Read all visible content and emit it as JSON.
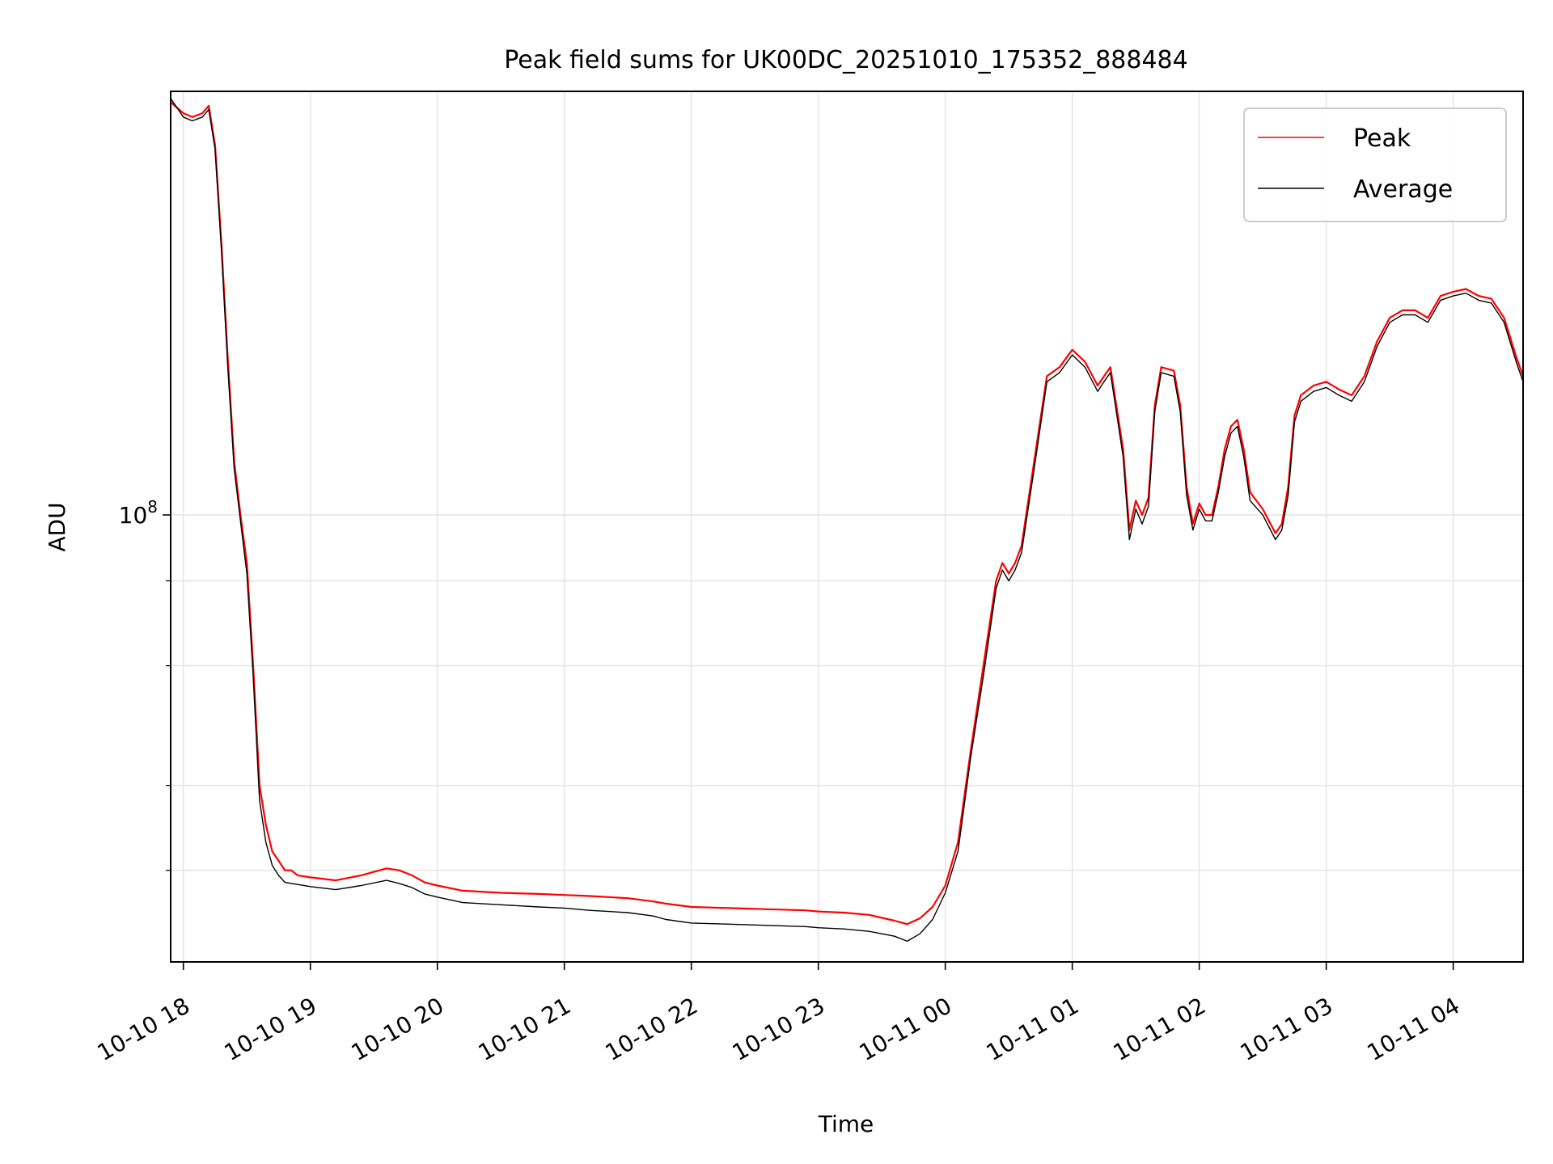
{
  "chart_data": {
    "type": "line",
    "title": "Peak field sums for UK00DC_20251010_175352_888484",
    "xlabel": "Time",
    "ylabel": "ADU",
    "yscale": "log",
    "ylim": [
      22000000,
      420000000
    ],
    "xlim_hours": [
      -0.1,
      10.55
    ],
    "x_ticks": [
      {
        "label": "10-10 18",
        "hour": 0
      },
      {
        "label": "10-10 19",
        "hour": 1
      },
      {
        "label": "10-10 20",
        "hour": 2
      },
      {
        "label": "10-10 21",
        "hour": 3
      },
      {
        "label": "10-10 22",
        "hour": 4
      },
      {
        "label": "10-10 23",
        "hour": 5
      },
      {
        "label": "10-11 00",
        "hour": 6
      },
      {
        "label": "10-11 01",
        "hour": 7
      },
      {
        "label": "10-11 02",
        "hour": 8
      },
      {
        "label": "10-11 03",
        "hour": 9
      },
      {
        "label": "10-11 04",
        "hour": 10
      }
    ],
    "y_major_tick": {
      "base": "10",
      "exp": "8",
      "value": 100000000
    },
    "y_minor_ticks": [
      30000000,
      40000000,
      60000000,
      80000000
    ],
    "grid": true,
    "legend_position": "upper-right",
    "series": [
      {
        "name": "Peak",
        "color": "#ff0000",
        "x_hours": [
          -0.1,
          0.0,
          0.07,
          0.15,
          0.2,
          0.25,
          0.3,
          0.35,
          0.4,
          0.45,
          0.5,
          0.55,
          0.6,
          0.65,
          0.7,
          0.75,
          0.8,
          0.85,
          0.9,
          1.0,
          1.2,
          1.4,
          1.6,
          1.7,
          1.8,
          1.9,
          2.0,
          2.2,
          2.5,
          2.8,
          3.0,
          3.2,
          3.5,
          3.7,
          3.8,
          4.0,
          4.3,
          4.6,
          4.9,
          5.0,
          5.2,
          5.4,
          5.6,
          5.7,
          5.8,
          5.9,
          6.0,
          6.1,
          6.2,
          6.3,
          6.4,
          6.45,
          6.5,
          6.55,
          6.6,
          6.7,
          6.8,
          6.9,
          7.0,
          7.1,
          7.2,
          7.25,
          7.3,
          7.4,
          7.45,
          7.5,
          7.55,
          7.6,
          7.65,
          7.7,
          7.8,
          7.85,
          7.9,
          7.95,
          8.0,
          8.05,
          8.1,
          8.15,
          8.2,
          8.25,
          8.3,
          8.35,
          8.4,
          8.5,
          8.6,
          8.65,
          8.7,
          8.75,
          8.8,
          8.9,
          9.0,
          9.1,
          9.2,
          9.3,
          9.4,
          9.5,
          9.6,
          9.7,
          9.8,
          9.9,
          10.0,
          10.1,
          10.2,
          10.3,
          10.4,
          10.5,
          10.55
        ],
        "values": [
          405000000,
          390000000,
          385000000,
          390000000,
          400000000,
          350000000,
          250000000,
          170000000,
          120000000,
          100000000,
          85000000,
          60000000,
          40000000,
          35000000,
          32000000,
          31000000,
          30000000,
          30000000,
          29500000,
          29300000,
          29000000,
          29500000,
          30200000,
          30000000,
          29500000,
          28800000,
          28500000,
          28000000,
          27800000,
          27700000,
          27600000,
          27500000,
          27300000,
          27000000,
          26800000,
          26500000,
          26400000,
          26300000,
          26200000,
          26100000,
          26000000,
          25800000,
          25300000,
          25000000,
          25500000,
          26500000,
          28500000,
          33000000,
          45000000,
          60000000,
          80000000,
          85000000,
          82000000,
          85000000,
          90000000,
          120000000,
          160000000,
          165000000,
          175000000,
          168000000,
          155000000,
          160000000,
          165000000,
          125000000,
          95000000,
          105000000,
          100000000,
          106000000,
          145000000,
          165000000,
          163000000,
          145000000,
          110000000,
          97000000,
          104000000,
          100000000,
          100000000,
          110000000,
          125000000,
          135000000,
          138000000,
          125000000,
          108000000,
          102000000,
          94000000,
          97000000,
          110000000,
          140000000,
          150000000,
          155000000,
          157000000,
          153000000,
          150000000,
          160000000,
          180000000,
          195000000,
          200000000,
          200000000,
          195000000,
          210000000,
          213000000,
          215000000,
          210000000,
          208000000,
          195000000,
          170000000,
          160000000
        ]
      },
      {
        "name": "Average",
        "color": "#000000",
        "x_hours": [
          -0.1,
          0.0,
          0.07,
          0.15,
          0.2,
          0.25,
          0.3,
          0.35,
          0.4,
          0.45,
          0.5,
          0.55,
          0.6,
          0.65,
          0.7,
          0.75,
          0.8,
          0.85,
          0.9,
          1.0,
          1.2,
          1.4,
          1.6,
          1.7,
          1.8,
          1.9,
          2.0,
          2.2,
          2.5,
          2.8,
          3.0,
          3.2,
          3.5,
          3.7,
          3.8,
          4.0,
          4.3,
          4.6,
          4.9,
          5.0,
          5.2,
          5.4,
          5.6,
          5.7,
          5.8,
          5.9,
          6.0,
          6.1,
          6.2,
          6.3,
          6.4,
          6.45,
          6.5,
          6.55,
          6.6,
          6.7,
          6.8,
          6.9,
          7.0,
          7.1,
          7.2,
          7.25,
          7.3,
          7.4,
          7.45,
          7.5,
          7.55,
          7.6,
          7.65,
          7.7,
          7.8,
          7.85,
          7.9,
          7.95,
          8.0,
          8.05,
          8.1,
          8.15,
          8.2,
          8.25,
          8.3,
          8.35,
          8.4,
          8.5,
          8.6,
          8.65,
          8.7,
          8.75,
          8.8,
          8.9,
          9.0,
          9.1,
          9.2,
          9.3,
          9.4,
          9.5,
          9.6,
          9.7,
          9.8,
          9.9,
          10.0,
          10.1,
          10.2,
          10.3,
          10.4,
          10.5,
          10.55
        ],
        "values": [
          410000000,
          385000000,
          380000000,
          385000000,
          395000000,
          345000000,
          245000000,
          165000000,
          117000000,
          98000000,
          82000000,
          58000000,
          38000000,
          33000000,
          30500000,
          29500000,
          28800000,
          28700000,
          28600000,
          28400000,
          28100000,
          28500000,
          29000000,
          28700000,
          28300000,
          27700000,
          27400000,
          26900000,
          26700000,
          26500000,
          26400000,
          26200000,
          26000000,
          25700000,
          25400000,
          25100000,
          25000000,
          24900000,
          24800000,
          24700000,
          24600000,
          24400000,
          24000000,
          23600000,
          24200000,
          25400000,
          27800000,
          32000000,
          44000000,
          58000000,
          78000000,
          83000000,
          80000000,
          83000000,
          88000000,
          117000000,
          157000000,
          162000000,
          172000000,
          165000000,
          152000000,
          157000000,
          162000000,
          122000000,
          92000000,
          102000000,
          97000000,
          103000000,
          142000000,
          162000000,
          160000000,
          142000000,
          107000000,
          95000000,
          102000000,
          98000000,
          98000000,
          108000000,
          122000000,
          132000000,
          135000000,
          122000000,
          105000000,
          100000000,
          92000000,
          95000000,
          107000000,
          137000000,
          147000000,
          152000000,
          154000000,
          150000000,
          147000000,
          157000000,
          177000000,
          192000000,
          197000000,
          197000000,
          192000000,
          207000000,
          210000000,
          212000000,
          207000000,
          205000000,
          192000000,
          167000000,
          157000000
        ]
      }
    ]
  }
}
